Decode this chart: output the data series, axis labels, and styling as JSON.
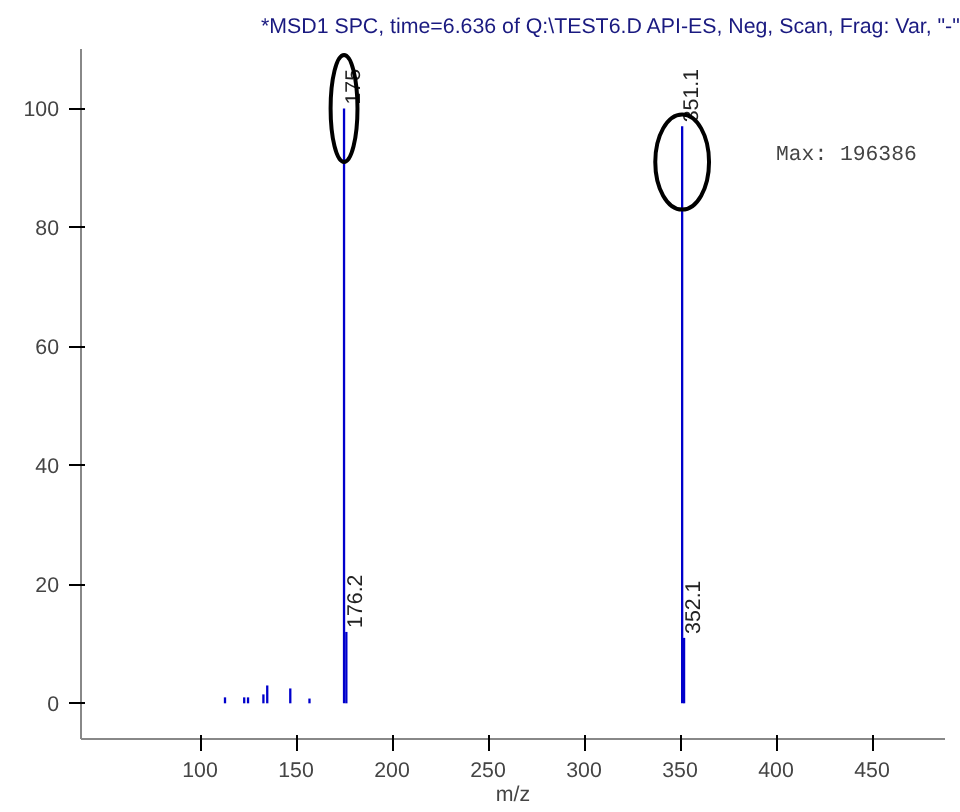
{
  "chart_data": {
    "type": "bar",
    "title": "*MSD1 SPC, time=6.636 of Q:\\TEST6.D    API-ES, Neg, Scan, Frag: Var, \"-\"",
    "xlabel": "m/z",
    "x": [
      113,
      123,
      125,
      133,
      135,
      147,
      157,
      175,
      176.2,
      351.1,
      352.1
    ],
    "values": [
      1,
      1,
      1,
      1.5,
      3,
      2.5,
      0.8,
      100,
      12,
      97,
      11
    ],
    "color": "#0000cc",
    "xlim": [
      38,
      488
    ],
    "ylim": [
      -6,
      110
    ],
    "xticks": [
      100,
      150,
      200,
      250,
      300,
      350,
      400,
      450
    ],
    "yticks": [
      0,
      20,
      40,
      60,
      80,
      100
    ],
    "grid": false,
    "annotations": [
      {
        "text": "175",
        "x": 175,
        "y": 100
      },
      {
        "text": "176.2",
        "x": 176.2,
        "y": 12
      },
      {
        "text": "351.1",
        "x": 351.1,
        "y": 97
      },
      {
        "text": "352.1",
        "x": 352.1,
        "y": 11
      },
      "Max:  196386"
    ]
  }
}
